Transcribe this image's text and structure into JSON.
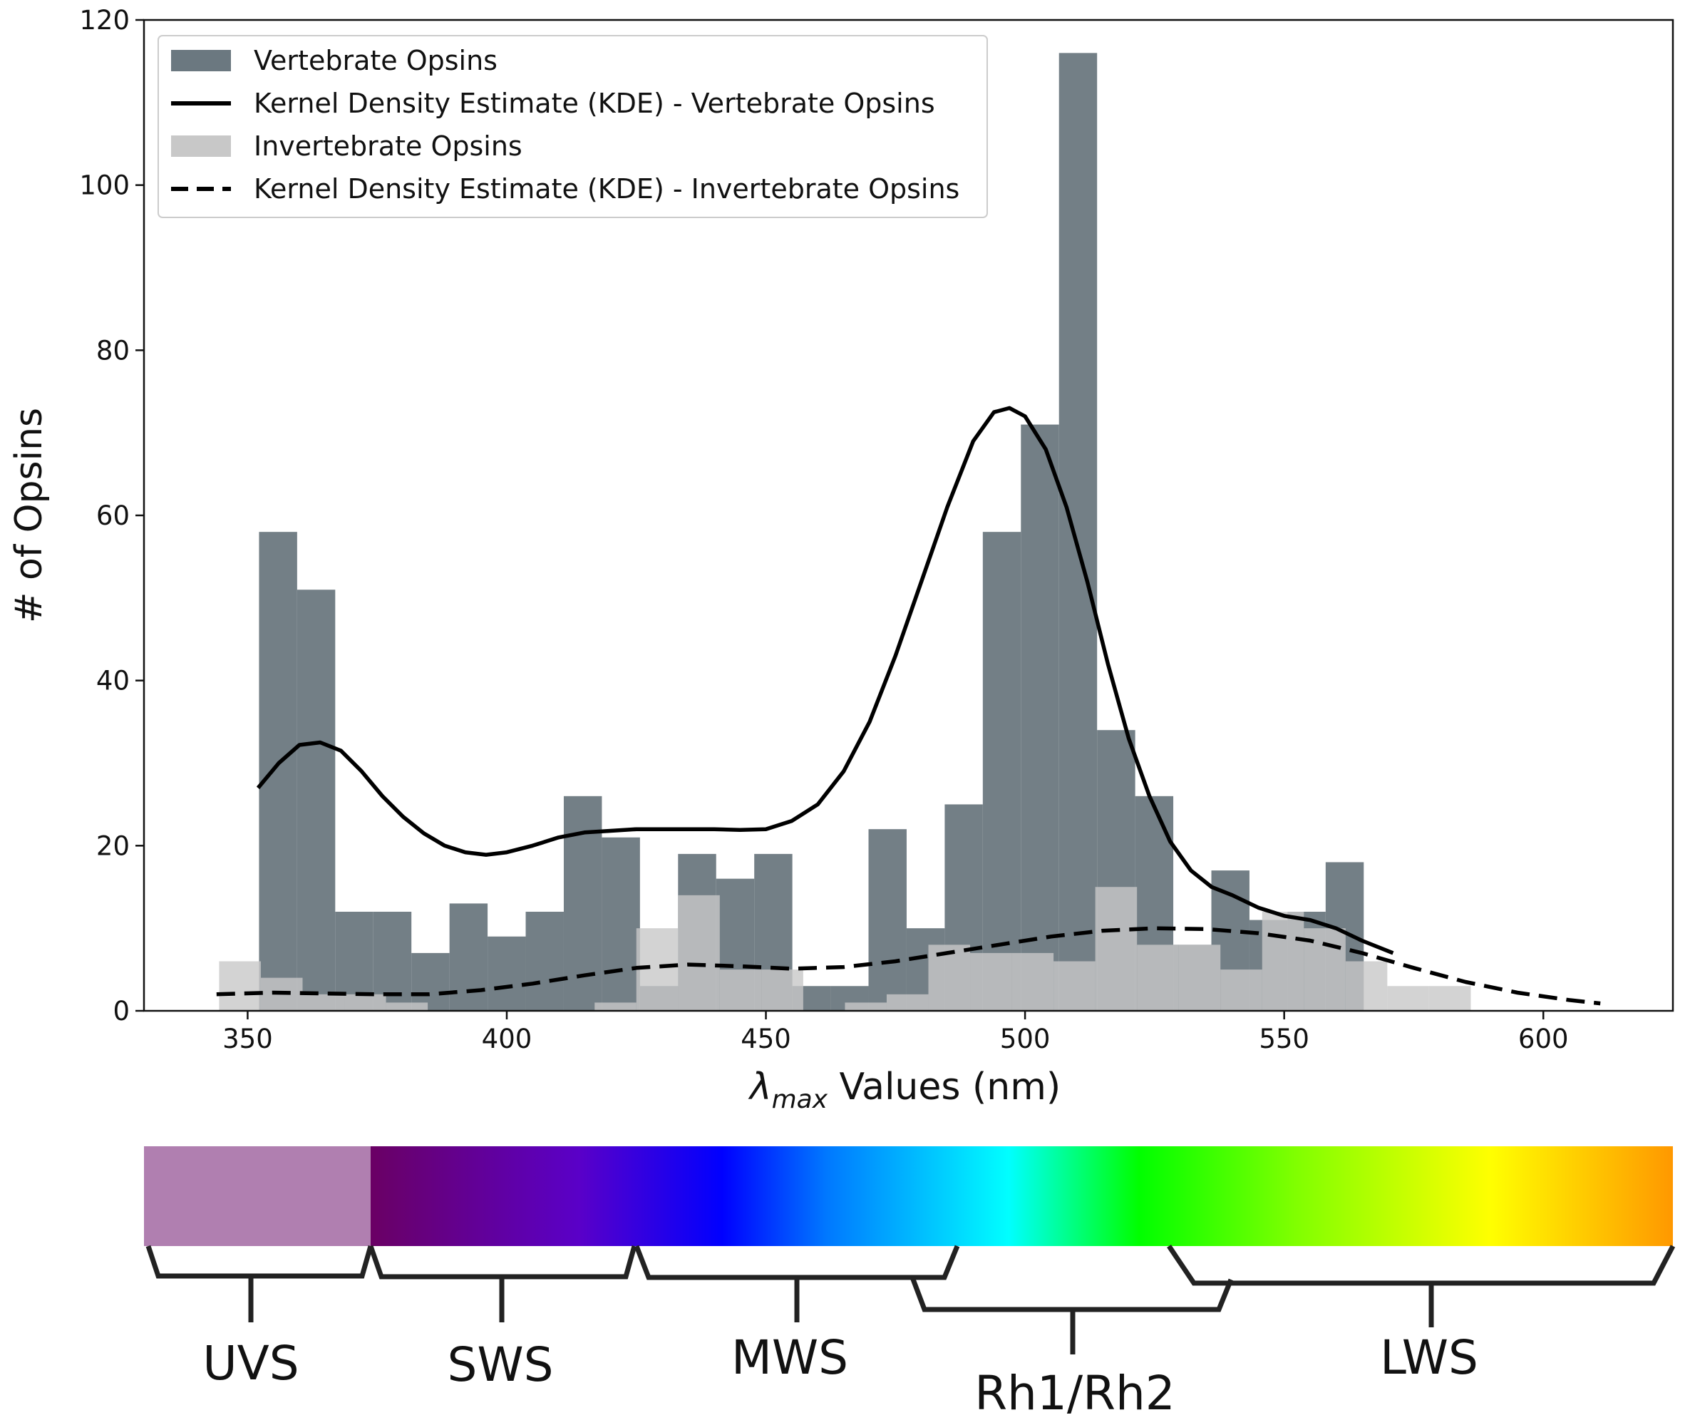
{
  "chart_data": {
    "type": "bar",
    "xlabel_symbol": "λ",
    "xlabel_subscript": "max",
    "xlabel_rest": " Values (nm)",
    "ylabel": "# of Opsins",
    "xlim": [
      330,
      625
    ],
    "ylim": [
      0,
      120
    ],
    "x_ticks": [
      350,
      400,
      450,
      500,
      550,
      600
    ],
    "y_ticks": [
      0,
      20,
      40,
      60,
      80,
      100,
      120
    ],
    "legend_position": "top-left",
    "series": [
      {
        "name": "Vertebrate Opsins",
        "type": "histogram",
        "color": "#6b7880",
        "bin_width": 7.35,
        "bin_start": 352.2,
        "values": [
          58,
          51,
          12,
          12,
          7,
          13,
          9,
          12,
          26,
          21,
          3,
          19,
          16,
          19,
          3,
          3,
          22,
          10,
          25,
          58,
          71,
          116,
          34,
          26,
          8,
          17,
          11,
          12,
          18
        ]
      },
      {
        "name": "Invertebrate Opsins",
        "type": "histogram",
        "color": "#c8c8c8",
        "bin_width": 8.05,
        "bin_start": 344.5,
        "values": [
          6,
          4,
          2,
          2,
          1,
          0,
          0,
          0,
          0,
          1,
          10,
          14,
          5,
          5,
          0,
          1,
          2,
          8,
          7,
          7,
          6,
          15,
          8,
          8,
          5,
          12,
          10,
          6,
          3,
          3
        ]
      },
      {
        "name": "Kernel Density Estimate (KDE) - Vertebrate Opsins",
        "type": "line",
        "style": "solid",
        "color": "#000000",
        "x": [
          352,
          356,
          360,
          364,
          368,
          372,
          376,
          380,
          384,
          388,
          392,
          396,
          400,
          405,
          410,
          415,
          420,
          425,
          430,
          435,
          440,
          445,
          450,
          455,
          460,
          465,
          470,
          475,
          480,
          485,
          490,
          494,
          497,
          500,
          504,
          508,
          512,
          516,
          520,
          524,
          528,
          532,
          536,
          540,
          545,
          550,
          555,
          560,
          565,
          571
        ],
        "y": [
          27,
          30,
          32.2,
          32.5,
          31.5,
          29,
          26,
          23.5,
          21.5,
          20,
          19.2,
          18.9,
          19.2,
          20,
          21,
          21.6,
          21.8,
          22,
          22,
          22,
          22,
          21.9,
          22,
          23,
          25,
          29,
          35,
          43,
          52,
          61,
          69,
          72.5,
          73,
          72,
          68,
          61,
          52,
          42,
          33,
          26,
          20.5,
          17,
          15,
          14,
          12.5,
          11.5,
          11,
          10,
          8.5,
          7
        ]
      },
      {
        "name": "Kernel Density Estimate (KDE) - Invertebrate Opsins",
        "type": "line",
        "style": "dashed",
        "color": "#000000",
        "x": [
          344,
          355,
          365,
          375,
          385,
          395,
          405,
          415,
          425,
          435,
          445,
          455,
          465,
          475,
          485,
          495,
          505,
          515,
          525,
          535,
          545,
          555,
          565,
          575,
          585,
          595,
          605,
          611
        ],
        "y": [
          2,
          2.2,
          2.1,
          2,
          2,
          2.5,
          3.3,
          4.3,
          5.2,
          5.6,
          5.4,
          5.1,
          5.3,
          6,
          7,
          8,
          9,
          9.7,
          10,
          9.9,
          9.4,
          8.5,
          7,
          5.2,
          3.5,
          2.2,
          1.3,
          0.9
        ]
      }
    ]
  },
  "spectrum": {
    "uv_color": "#b07fb0",
    "stops": [
      {
        "offset": "0%",
        "color": "#6a0064"
      },
      {
        "offset": "16%",
        "color": "#5a00c8"
      },
      {
        "offset": "27%",
        "color": "#0000ff"
      },
      {
        "offset": "35%",
        "color": "#0078ff"
      },
      {
        "offset": "49%",
        "color": "#00ffff"
      },
      {
        "offset": "59%",
        "color": "#00ff00"
      },
      {
        "offset": "71%",
        "color": "#80ff00"
      },
      {
        "offset": "86%",
        "color": "#ffff00"
      },
      {
        "offset": "100%",
        "color": "#ff9800"
      }
    ],
    "bracket_color": "#222222",
    "groups": [
      {
        "label": "UVS"
      },
      {
        "label": "SWS"
      },
      {
        "label": "MWS"
      },
      {
        "label": "Rh1/Rh2"
      },
      {
        "label": "LWS"
      }
    ]
  }
}
